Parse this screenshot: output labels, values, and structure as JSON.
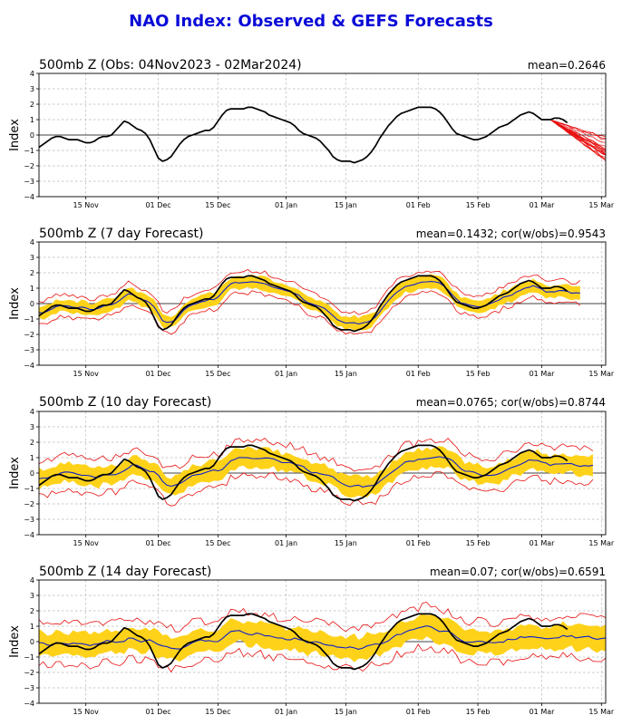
{
  "figure": {
    "title": "NAO Index: Observed & GEFS Forecasts",
    "colors": {
      "title": "#0a0ad8",
      "observed": "#000000",
      "ensemble": "#e81010",
      "band": "#ffd21a",
      "mean": "#1020c8"
    }
  },
  "chart_data": [
    {
      "type": "line",
      "panel": "observed",
      "title": "500mb Z (Obs: 04Nov2023 - 02Mar2024)",
      "stat": "mean=0.2646",
      "ylabel": "Index",
      "ylim": [
        -4,
        4
      ],
      "yticks": [
        "4",
        "3",
        "2",
        "1",
        "0",
        "−1",
        "−2",
        "−3",
        "−4"
      ],
      "xlim": [
        0,
        133
      ],
      "x_ticks": [
        11,
        28,
        42,
        58,
        72,
        89,
        103,
        118,
        132
      ],
      "x_tick_labels": [
        "15 Nov",
        "01 Dec",
        "15 Dec",
        "01 Jan",
        "15 Jan",
        "01 Feb",
        "15 Feb",
        "01 Mar",
        "15 Mar"
      ],
      "observed": {
        "x_start": 0,
        "values": [
          -0.8,
          -0.6,
          -0.4,
          -0.2,
          -0.1,
          -0.1,
          -0.2,
          -0.3,
          -0.3,
          -0.3,
          -0.4,
          -0.5,
          -0.5,
          -0.4,
          -0.2,
          -0.1,
          -0.1,
          0,
          0.3,
          0.6,
          0.9,
          0.8,
          0.6,
          0.4,
          0.3,
          0.1,
          -0.3,
          -0.9,
          -1.5,
          -1.7,
          -1.6,
          -1.4,
          -1.0,
          -0.6,
          -0.3,
          -0.1,
          0,
          0.1,
          0.2,
          0.3,
          0.3,
          0.5,
          0.9,
          1.3,
          1.6,
          1.7,
          1.7,
          1.7,
          1.7,
          1.8,
          1.8,
          1.7,
          1.6,
          1.5,
          1.3,
          1.2,
          1.1,
          1.0,
          0.9,
          0.8,
          0.6,
          0.3,
          0.1,
          0,
          -0.1,
          -0.2,
          -0.4,
          -0.7,
          -1.0,
          -1.4,
          -1.6,
          -1.7,
          -1.7,
          -1.7,
          -1.8,
          -1.7,
          -1.6,
          -1.4,
          -1.1,
          -0.7,
          -0.2,
          0.2,
          0.6,
          0.9,
          1.2,
          1.4,
          1.5,
          1.6,
          1.7,
          1.8,
          1.8,
          1.8,
          1.8,
          1.7,
          1.5,
          1.2,
          0.8,
          0.4,
          0.1,
          0,
          -0.1,
          -0.2,
          -0.3,
          -0.3,
          -0.2,
          -0.1,
          0.1,
          0.3,
          0.5,
          0.6,
          0.7,
          0.9,
          1.1,
          1.3,
          1.4,
          1.5,
          1.4,
          1.2,
          1.0,
          1.0,
          1.0,
          1.1,
          1.1,
          1.0,
          0.8
        ]
      },
      "forecast_members": {
        "x_start": 120,
        "count": 21
      },
      "legend": []
    },
    {
      "type": "line",
      "panel": "7 day",
      "title": "500mb Z (7 day Forecast)",
      "stat": "mean=0.1432; cor(w/obs)=0.9543",
      "ylabel": "Index",
      "ylim": [
        -4,
        4
      ],
      "yticks": [
        "4",
        "3",
        "2",
        "1",
        "0",
        "−1",
        "−2",
        "−3",
        "−4"
      ],
      "xlim": [
        0,
        133
      ],
      "x_ticks": [
        11,
        28,
        42,
        58,
        72,
        89,
        103,
        118,
        132
      ],
      "x_tick_labels": [
        "15 Nov",
        "01 Dec",
        "15 Dec",
        "01 Jan",
        "15 Jan",
        "01 Feb",
        "15 Feb",
        "01 Mar",
        "15 Mar"
      ],
      "lead": 7,
      "spread": 0.7,
      "band": 0.4,
      "mean_drift": 0.25,
      "x_end": 127,
      "legend": []
    },
    {
      "type": "line",
      "panel": "10 day",
      "title": "500mb Z (10 day Forecast)",
      "stat": "mean=0.0765; cor(w/obs)=0.8744",
      "ylabel": "Index",
      "ylim": [
        -4,
        4
      ],
      "yticks": [
        "4",
        "3",
        "2",
        "1",
        "0",
        "−1",
        "−2",
        "−3",
        "−4"
      ],
      "xlim": [
        0,
        133
      ],
      "x_ticks": [
        11,
        28,
        42,
        58,
        72,
        89,
        103,
        118,
        132
      ],
      "x_tick_labels": [
        "15 Nov",
        "01 Dec",
        "15 Dec",
        "01 Jan",
        "15 Jan",
        "01 Feb",
        "15 Feb",
        "01 Mar",
        "15 Mar"
      ],
      "lead": 10,
      "spread": 1.1,
      "band": 0.6,
      "mean_drift": 0.45,
      "x_end": 130,
      "legend": []
    },
    {
      "type": "line",
      "panel": "14 day",
      "title": "500mb Z (14 day Forecast)",
      "stat": "mean=0.07; cor(w/obs)=0.6591",
      "ylabel": "Index",
      "ylim": [
        -4,
        4
      ],
      "yticks": [
        "4",
        "3",
        "2",
        "1",
        "0",
        "−1",
        "−2",
        "−3",
        "−4"
      ],
      "xlim": [
        0,
        133
      ],
      "x_ticks": [
        11,
        28,
        42,
        58,
        72,
        89,
        103,
        118,
        132
      ],
      "x_tick_labels": [
        "15 Nov",
        "01 Dec",
        "15 Dec",
        "01 Jan",
        "15 Jan",
        "01 Feb",
        "15 Feb",
        "01 Mar",
        "15 Mar"
      ],
      "lead": 14,
      "spread": 1.3,
      "band": 0.75,
      "mean_drift": 0.7,
      "x_end": 133,
      "legend": []
    }
  ]
}
